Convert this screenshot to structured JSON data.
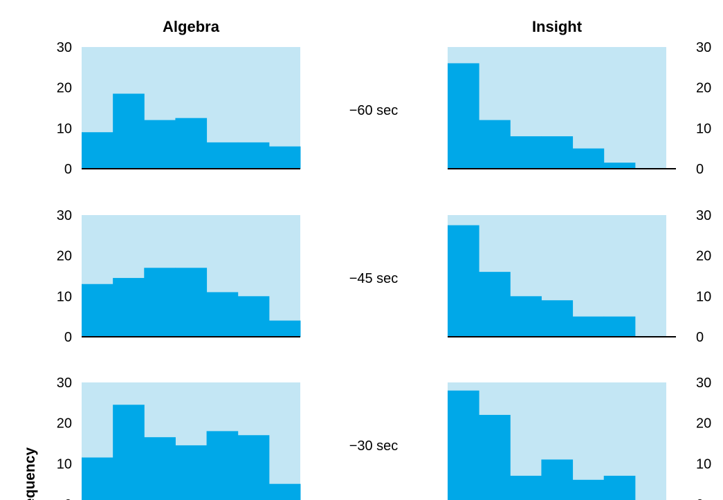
{
  "colors": {
    "panel_bg": "#c3e6f4",
    "bar": "#00a8e8",
    "axis": "#000000"
  },
  "chart_data": {
    "type": "bar",
    "ylabel": "Frequency",
    "columns": [
      "Algebra",
      "Insight"
    ],
    "rows": [
      "−60 sec",
      "−45 sec",
      "−30 sec"
    ],
    "ylim": [
      0,
      30
    ],
    "yticks": [
      0,
      10,
      20,
      30
    ],
    "bins": 7,
    "panels": [
      {
        "column": "Algebra",
        "row": "−60 sec",
        "values": [
          9,
          18.5,
          12,
          12.5,
          6.5,
          6.5,
          5.5
        ]
      },
      {
        "column": "Insight",
        "row": "−60 sec",
        "values": [
          26,
          12,
          8,
          8,
          5,
          1.5,
          0
        ]
      },
      {
        "column": "Algebra",
        "row": "−45 sec",
        "values": [
          13,
          14.5,
          17,
          17,
          11,
          10,
          4
        ]
      },
      {
        "column": "Insight",
        "row": "−45 sec",
        "values": [
          27.5,
          16,
          10,
          9,
          5,
          5,
          0
        ]
      },
      {
        "column": "Algebra",
        "row": "−30 sec",
        "values": [
          11.5,
          24.5,
          16.5,
          14.5,
          18,
          17,
          5
        ]
      },
      {
        "column": "Insight",
        "row": "−30 sec",
        "values": [
          28,
          22,
          7,
          11,
          6,
          7,
          0
        ]
      }
    ]
  }
}
